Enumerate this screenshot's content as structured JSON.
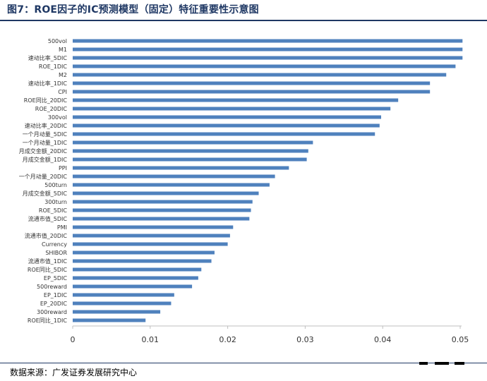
{
  "header": {
    "title": "图7：ROE因子的IC预测模型（固定）特征重要性示意图"
  },
  "footer": {
    "source": "数据来源：广发证券发展研究中心"
  },
  "colors": {
    "bar": "#4f81bd",
    "rule": "#1f3864",
    "axis": "#bfbfbf",
    "text": "#000000"
  },
  "chart_data": {
    "type": "bar",
    "orientation": "horizontal",
    "title": "",
    "xlabel": "",
    "ylabel": "",
    "xlim": [
      0,
      0.05
    ],
    "xticks": [
      "0",
      "0.01",
      "0.02",
      "0.03",
      "0.04",
      "0.05"
    ],
    "categories": [
      "500vol",
      "M1",
      "速动比率_5DIC",
      "ROE_1DIC",
      "M2",
      "速动比率_1DIC",
      "CPI",
      "ROE同比_20DIC",
      "ROE_20DIC",
      "300vol",
      "速动比率_20DIC",
      "一个月动量_5DIC",
      "一个月动量_1DIC",
      "月成交金额_20DIC",
      "月成交金额_1DIC",
      "PPI",
      "一个月动量_20DIC",
      "500turn",
      "月成交金额_5DIC",
      "300turn",
      "ROE_5DIC",
      "流通市值_5DIC",
      "PMI",
      "流通市值_20DIC",
      "Currency",
      "SHIBOR",
      "流通市值_1DIC",
      "ROE同比_5DIC",
      "EP_5DIC",
      "500reward",
      "EP_1DIC",
      "EP_20DIC",
      "300reward",
      "ROE同比_1DIC"
    ],
    "values": [
      0.0503,
      0.0503,
      0.0503,
      0.0494,
      0.0482,
      0.0461,
      0.0461,
      0.042,
      0.041,
      0.0398,
      0.0396,
      0.039,
      0.031,
      0.0304,
      0.0302,
      0.0279,
      0.0261,
      0.0254,
      0.024,
      0.0232,
      0.023,
      0.0228,
      0.0207,
      0.0203,
      0.02,
      0.0183,
      0.0179,
      0.0166,
      0.0162,
      0.0154,
      0.0131,
      0.0127,
      0.0113,
      0.0094
    ],
    "legend": "none",
    "grid": false
  }
}
